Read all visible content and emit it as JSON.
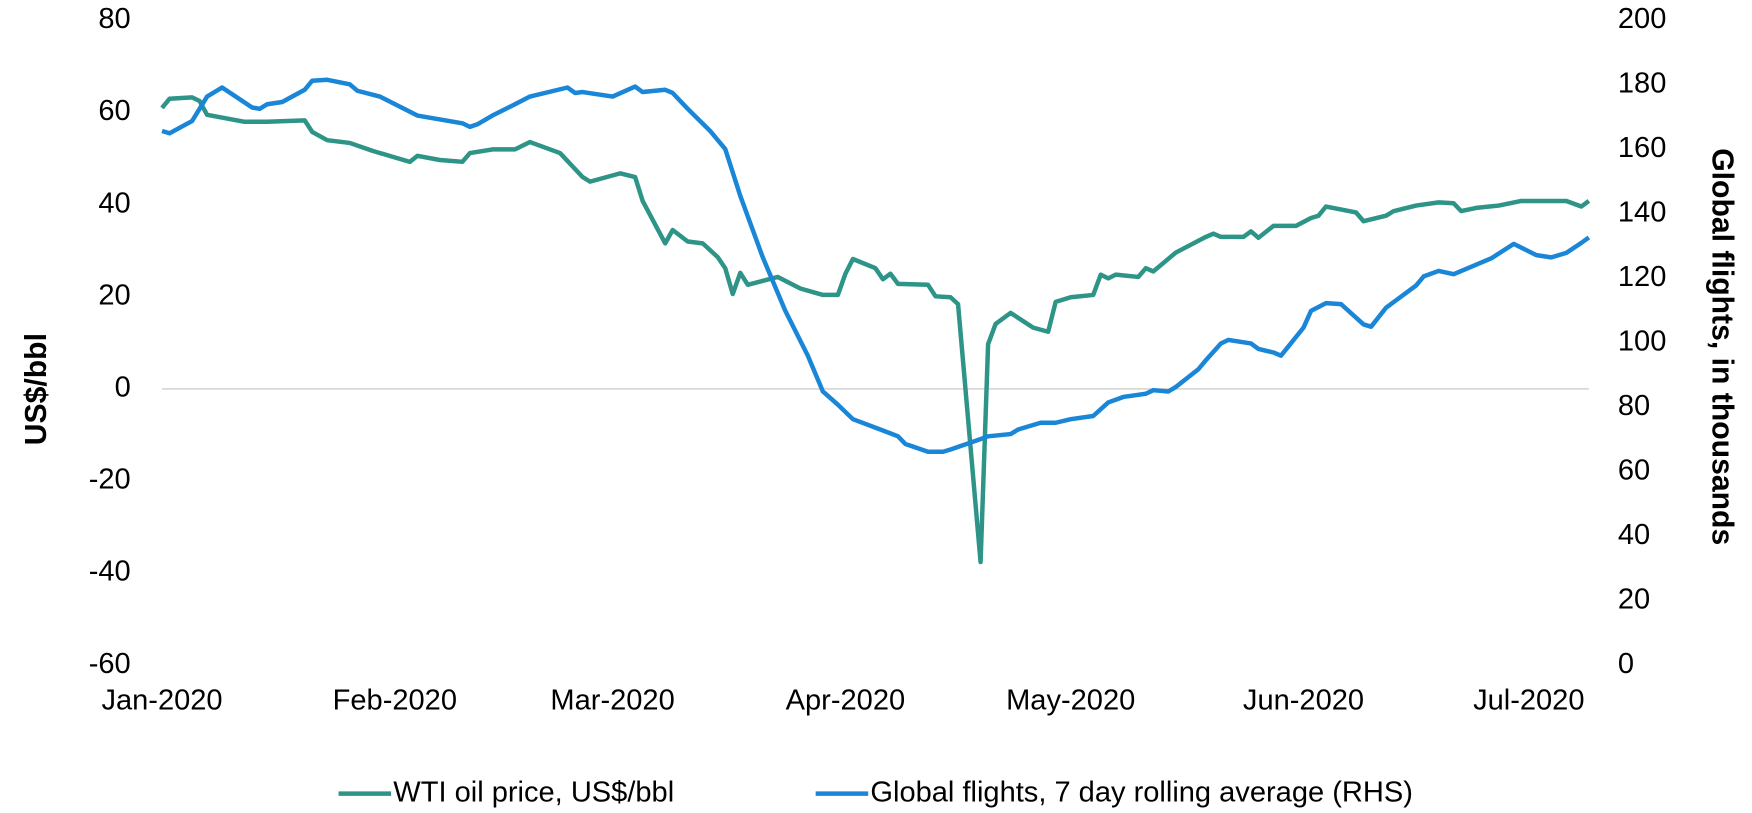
{
  "chart_data": {
    "type": "line",
    "ylabel": "US$/bbl",
    "y2label": "Global flights, in thousands",
    "xlim": [
      "2020-01-01",
      "2020-07-09"
    ],
    "xticks": [
      {
        "value": "2020-01-01",
        "label": "Jan-2020"
      },
      {
        "value": "2020-02-01",
        "label": "Feb-2020"
      },
      {
        "value": "2020-03-01",
        "label": "Mar-2020"
      },
      {
        "value": "2020-04-01",
        "label": "Apr-2020"
      },
      {
        "value": "2020-05-01",
        "label": "May-2020"
      },
      {
        "value": "2020-06-01",
        "label": "Jun-2020"
      },
      {
        "value": "2020-07-01",
        "label": "Jul-2020"
      }
    ],
    "ylim": [
      -60,
      80
    ],
    "yticks": [
      80,
      60,
      40,
      20,
      0,
      -20,
      -40,
      -60
    ],
    "y2lim": [
      0,
      200
    ],
    "y2ticks": [
      200,
      180,
      160,
      140,
      120,
      100,
      80,
      60,
      40,
      20,
      0
    ],
    "legend": "bottom",
    "series": [
      {
        "name": "WTI oil price, US$/bbl",
        "color": "#2e9488",
        "x": [
          "2020-01-01",
          "2020-01-02",
          "2020-01-05",
          "2020-01-06",
          "2020-01-07",
          "2020-01-12",
          "2020-01-15",
          "2020-01-20",
          "2020-01-21",
          "2020-01-23",
          "2020-01-26",
          "2020-01-29",
          "2020-02-03",
          "2020-02-04",
          "2020-02-07",
          "2020-02-10",
          "2020-02-11",
          "2020-02-14",
          "2020-02-17",
          "2020-02-19",
          "2020-02-23",
          "2020-02-26",
          "2020-02-27",
          "2020-03-02",
          "2020-03-04",
          "2020-03-05",
          "2020-03-08",
          "2020-03-09",
          "2020-03-11",
          "2020-03-13",
          "2020-03-15",
          "2020-03-16",
          "2020-03-17",
          "2020-03-18",
          "2020-03-19",
          "2020-03-23",
          "2020-03-26",
          "2020-03-29",
          "2020-03-31",
          "2020-04-01",
          "2020-04-02",
          "2020-04-05",
          "2020-04-06",
          "2020-04-07",
          "2020-04-08",
          "2020-04-12",
          "2020-04-13",
          "2020-04-15",
          "2020-04-16",
          "2020-04-19",
          "2020-04-20",
          "2020-04-21",
          "2020-04-23",
          "2020-04-26",
          "2020-04-28",
          "2020-04-29",
          "2020-05-01",
          "2020-05-04",
          "2020-05-05",
          "2020-05-06",
          "2020-05-07",
          "2020-05-10",
          "2020-05-11",
          "2020-05-12",
          "2020-05-15",
          "2020-05-19",
          "2020-05-20",
          "2020-05-21",
          "2020-05-24",
          "2020-05-25",
          "2020-05-26",
          "2020-05-28",
          "2020-05-31",
          "2020-06-02",
          "2020-06-03",
          "2020-06-04",
          "2020-06-08",
          "2020-06-09",
          "2020-06-12",
          "2020-06-13",
          "2020-06-16",
          "2020-06-19",
          "2020-06-21",
          "2020-06-22",
          "2020-06-24",
          "2020-06-27",
          "2020-06-30",
          "2020-07-06",
          "2020-07-08",
          "2020-07-09"
        ],
        "values": [
          61,
          63,
          63.3,
          62.5,
          59.5,
          58,
          58,
          58.3,
          55.8,
          54,
          53.4,
          51.7,
          49.3,
          50.6,
          49.7,
          49.3,
          51.2,
          52,
          52,
          53.6,
          51.2,
          46,
          45,
          46.8,
          46,
          40.8,
          31.6,
          34.5,
          32,
          31.6,
          28.6,
          26.2,
          20.6,
          25.2,
          22.6,
          24.3,
          21.8,
          20.4,
          20.4,
          25,
          28.2,
          26.2,
          23.8,
          25,
          22.8,
          22.6,
          20.1,
          19.9,
          18.4,
          -37.6,
          9.7,
          14.1,
          16.5,
          13.3,
          12.4,
          18.9,
          19.9,
          20.4,
          24.8,
          24,
          24.8,
          24.3,
          26.2,
          25.5,
          29.6,
          33,
          33.7,
          33,
          33,
          34.2,
          32.8,
          35.4,
          35.4,
          37.1,
          37.6,
          39.6,
          38.3,
          36.4,
          37.6,
          38.6,
          39.8,
          40.5,
          40.3,
          38.6,
          39.3,
          39.8,
          40.8,
          40.8,
          39.6,
          40.8
        ]
      },
      {
        "name": "Global flights, 7 day rolling average (RHS)",
        "color": "#1a86d8",
        "axis": "y2",
        "x": [
          "2020-01-01",
          "2020-01-02",
          "2020-01-05",
          "2020-01-07",
          "2020-01-09",
          "2020-01-13",
          "2020-01-14",
          "2020-01-15",
          "2020-01-17",
          "2020-01-20",
          "2020-01-21",
          "2020-01-23",
          "2020-01-26",
          "2020-01-27",
          "2020-01-30",
          "2020-02-04",
          "2020-02-10",
          "2020-02-11",
          "2020-02-12",
          "2020-02-14",
          "2020-02-17",
          "2020-02-19",
          "2020-02-24",
          "2020-02-25",
          "2020-02-26",
          "2020-03-01",
          "2020-03-04",
          "2020-03-05",
          "2020-03-08",
          "2020-03-09",
          "2020-03-11",
          "2020-03-14",
          "2020-03-16",
          "2020-03-18",
          "2020-03-21",
          "2020-03-24",
          "2020-03-27",
          "2020-03-29",
          "2020-03-31",
          "2020-04-02",
          "2020-04-06",
          "2020-04-08",
          "2020-04-09",
          "2020-04-12",
          "2020-04-14",
          "2020-04-15",
          "2020-04-18",
          "2020-04-20",
          "2020-04-23",
          "2020-04-24",
          "2020-04-27",
          "2020-04-29",
          "2020-05-01",
          "2020-05-04",
          "2020-05-06",
          "2020-05-08",
          "2020-05-11",
          "2020-05-12",
          "2020-05-14",
          "2020-05-15",
          "2020-05-18",
          "2020-05-19",
          "2020-05-21",
          "2020-05-22",
          "2020-05-25",
          "2020-05-26",
          "2020-05-28",
          "2020-05-29",
          "2020-06-01",
          "2020-06-02",
          "2020-06-04",
          "2020-06-06",
          "2020-06-09",
          "2020-06-10",
          "2020-06-12",
          "2020-06-16",
          "2020-06-17",
          "2020-06-19",
          "2020-06-21",
          "2020-06-26",
          "2020-06-29",
          "2020-07-02",
          "2020-07-04",
          "2020-07-06",
          "2020-07-08",
          "2020-07-09"
        ],
        "values": [
          165.7,
          165,
          168.8,
          176.4,
          179.2,
          173,
          172.6,
          174,
          174.7,
          178.5,
          181.3,
          181.6,
          180.2,
          178.2,
          176.4,
          170.5,
          168.1,
          167,
          167.8,
          170.5,
          174,
          176.4,
          179.2,
          177.5,
          177.8,
          176.4,
          179.5,
          177.8,
          178.5,
          177.5,
          172.6,
          165.7,
          160.1,
          145.6,
          126.5,
          109.9,
          96,
          84.9,
          80.8,
          76.3,
          72.8,
          71,
          68.6,
          66.2,
          66.2,
          66.9,
          69.3,
          71,
          71.7,
          73.1,
          75.2,
          75.2,
          76.3,
          77.3,
          81.5,
          83.2,
          84.2,
          85.3,
          84.9,
          86.3,
          91.8,
          94.6,
          99.8,
          100.9,
          99.8,
          98.1,
          97,
          96,
          104.7,
          109.9,
          112.3,
          112,
          105.7,
          105,
          110.9,
          117.8,
          120.6,
          122.3,
          121.3,
          126.2,
          130.7,
          127.2,
          126.5,
          127.9,
          131,
          132.7
        ]
      }
    ]
  }
}
